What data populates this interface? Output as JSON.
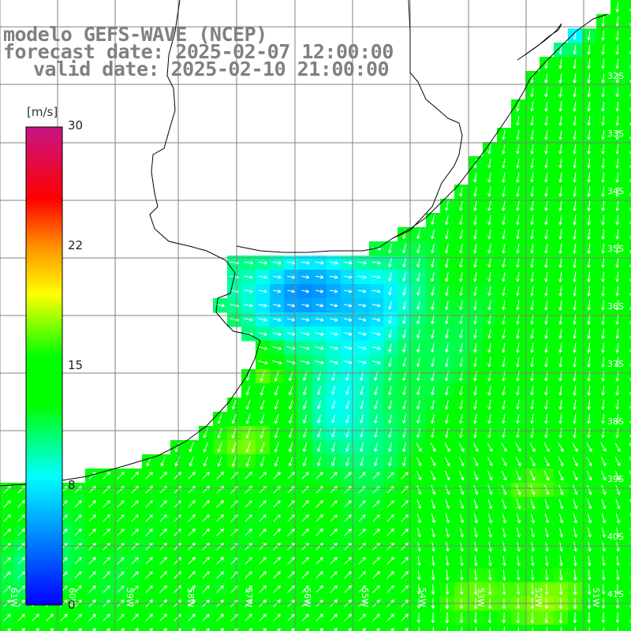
{
  "title": {
    "line1": "modelo GEFS-WAVE (NCEP)",
    "line2": "forecast date: 2025-02-07 12:00:00",
    "line3": "valid date: 2025-02-10 21:00:00"
  },
  "colorbar": {
    "units": "[m/s]",
    "ticks": [
      "30",
      "22",
      "15",
      "8",
      "0"
    ],
    "colors": [
      "#0000ff",
      "#00ffff",
      "#00ff00",
      "#ffff00",
      "#ff0000",
      "#c71585"
    ]
  },
  "lat_labels": [
    "32S",
    "33S",
    "34S",
    "35S",
    "36S",
    "37S",
    "38S",
    "39S",
    "40S",
    "41S"
  ],
  "lon_labels": [
    "61W",
    "60W",
    "59W",
    "58W",
    "57W",
    "56W",
    "55W",
    "54W",
    "53W",
    "52W",
    "51W"
  ],
  "colors": {
    "land": "#ffffff",
    "grid": "#808080",
    "coast": "#000000",
    "arrow": "#ffffff"
  }
}
